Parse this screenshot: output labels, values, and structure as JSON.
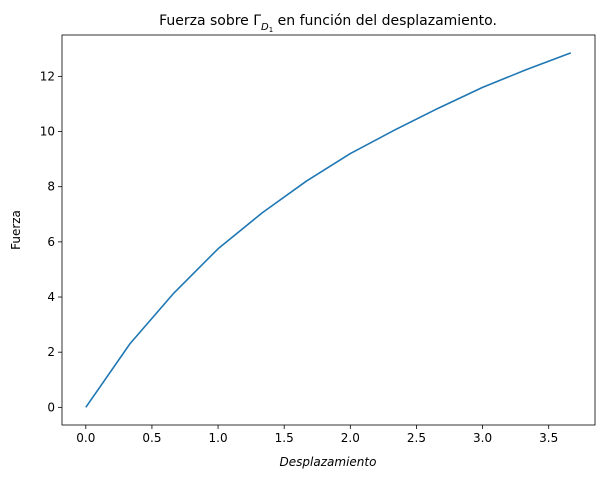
{
  "chart_data": {
    "type": "line",
    "title": {
      "prefix": "Fuerza sobre Γ",
      "subscript": "D",
      "subsubscript": "1",
      "suffix": " en función del desplazamiento."
    },
    "xlabel": "Desplazamiento",
    "ylabel": "Fuerza",
    "xlim": [
      -0.18,
      3.85
    ],
    "ylim": [
      -0.64,
      13.5
    ],
    "xticks": [
      0.0,
      0.5,
      1.0,
      1.5,
      2.0,
      2.5,
      3.0,
      3.5
    ],
    "xtick_labels": [
      "0.0",
      "0.5",
      "1.0",
      "1.5",
      "2.0",
      "2.5",
      "3.0",
      "3.5"
    ],
    "yticks": [
      0,
      2,
      4,
      6,
      8,
      10,
      12
    ],
    "ytick_labels": [
      "0",
      "2",
      "4",
      "6",
      "8",
      "10",
      "12"
    ],
    "grid": false,
    "series": [
      {
        "color": "#1f77b4",
        "x": [
          0.0,
          0.333,
          0.667,
          1.0,
          1.333,
          1.667,
          2.0,
          2.333,
          2.667,
          3.0,
          3.333,
          3.667
        ],
        "y": [
          0.0,
          2.3,
          4.15,
          5.75,
          7.05,
          8.2,
          9.2,
          10.05,
          10.85,
          11.6,
          12.25,
          12.85
        ]
      }
    ]
  }
}
